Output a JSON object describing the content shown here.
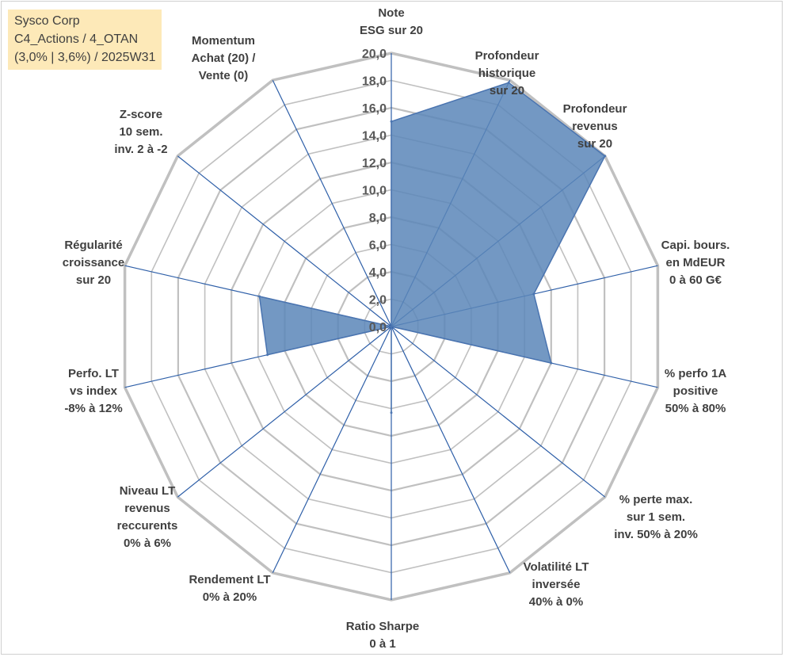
{
  "info_box": {
    "lines": [
      "Sysco Corp",
      "C4_Actions / 4_OTAN",
      "(3,0% | 3,6%) / 2025W31"
    ]
  },
  "colors": {
    "fill": "#5b86b9",
    "stroke": "#4a74b0",
    "spoke": "#2e5fa8",
    "grid": "#c0c0c0",
    "info_bg": "#fde9b8"
  },
  "chart_data": {
    "type": "radar",
    "title": "",
    "rlim": [
      0,
      20
    ],
    "tick_step": 2,
    "tick_labels": [
      "0,0",
      "2,0",
      "4,0",
      "6,0",
      "8,0",
      "10,0",
      "12,0",
      "14,0",
      "16,0",
      "18,0",
      "20,0"
    ],
    "grid": true,
    "axes": [
      {
        "label": [
          "Note",
          "ESG sur 20"
        ],
        "value": 15.0
      },
      {
        "label": [
          "Profondeur",
          "historique",
          "sur 20"
        ],
        "value": 19.8
      },
      {
        "label": [
          "Profondeur",
          "revenus",
          "sur 20"
        ],
        "value": 20.0
      },
      {
        "label": [
          "Capi. bours.",
          "en MdEUR",
          "0 à 60 G€"
        ],
        "value": 10.7
      },
      {
        "label": [
          "% perfo 1A",
          "positive",
          "50% à 80%"
        ],
        "value": 12.0
      },
      {
        "label": [
          "% perte max.",
          "sur 1 sem.",
          "inv. 50% à 20%"
        ],
        "value": 0.0
      },
      {
        "label": [
          "Volatilité LT",
          "inversée",
          "40% à 0%"
        ],
        "value": 0.0
      },
      {
        "label": [
          "Ratio Sharpe",
          "0 à 1"
        ],
        "value": 6.3
      },
      {
        "label": [
          "Rendement LT",
          "0% à 20%"
        ],
        "value": 0.0
      },
      {
        "label": [
          "Niveau LT",
          "revenus",
          "reccurents",
          "0% à 6%"
        ],
        "value": 0.0
      },
      {
        "label": [
          "Perfo. LT",
          "vs index",
          "-8% à 12%"
        ],
        "value": 9.3
      },
      {
        "label": [
          "Régularité",
          "croissance",
          "sur 20"
        ],
        "value": 9.9
      },
      {
        "label": [
          "Z-score",
          "10 sem.",
          "inv. 2 à -2"
        ],
        "value": 0.0
      },
      {
        "label": [
          "Momentum",
          "Achat (20) /",
          "Vente (0)"
        ],
        "value": 0.0
      }
    ]
  }
}
